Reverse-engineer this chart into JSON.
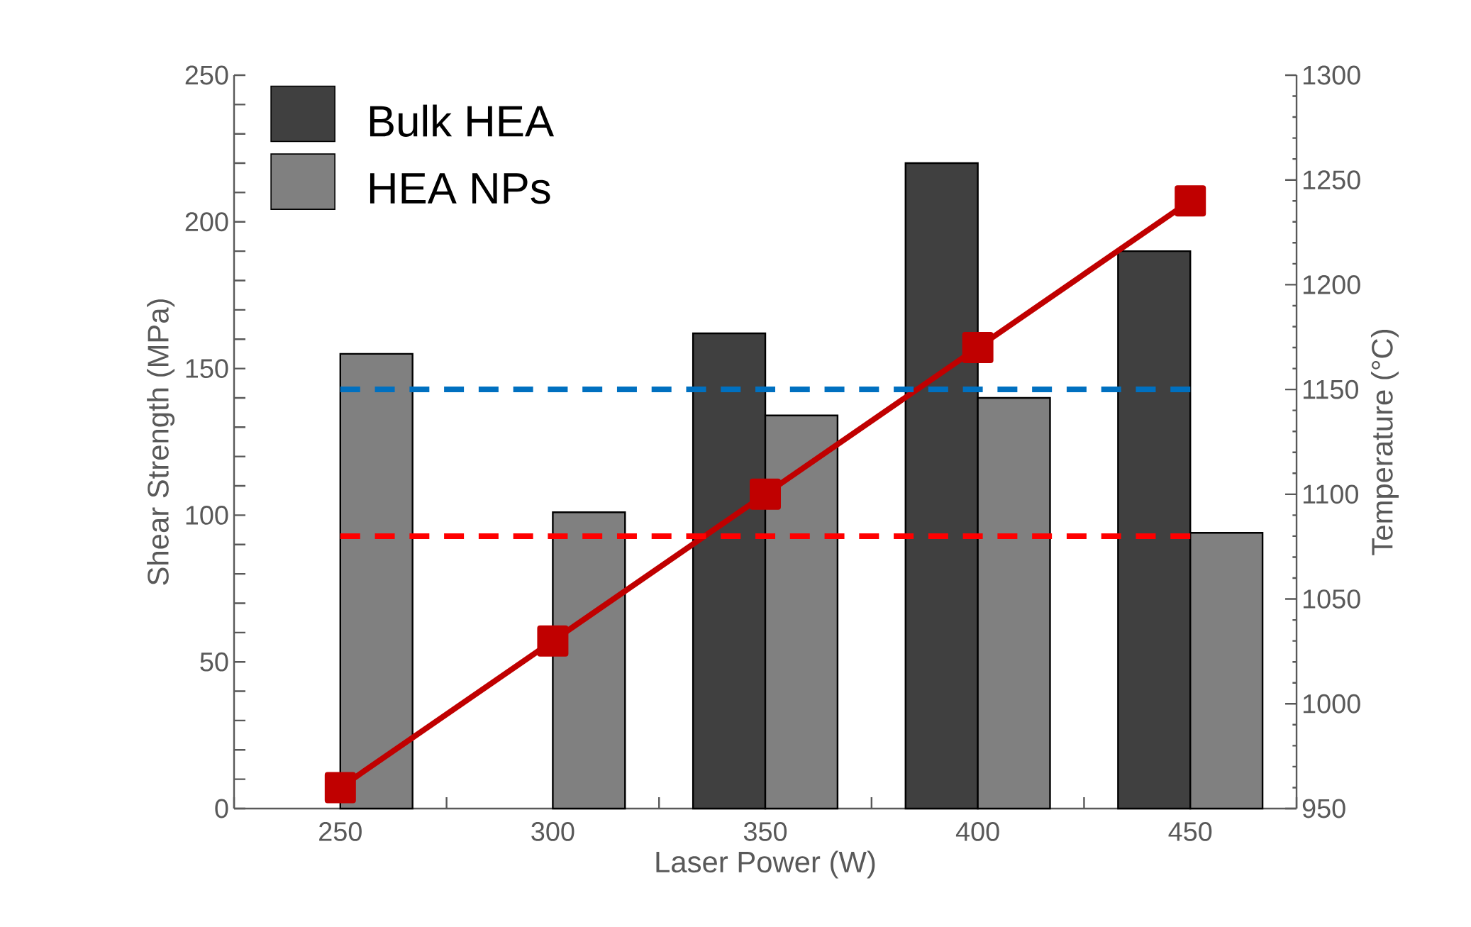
{
  "chart_data": {
    "type": "bar",
    "xlabel": "Laser Power (W)",
    "ylabel": "Shear Strength (MPa)",
    "y2label": "Temperature (°C)",
    "categories": [
      "250",
      "300",
      "350",
      "400",
      "450"
    ],
    "series": [
      {
        "name": "Bulk HEA",
        "color": "#404040",
        "values": [
          null,
          null,
          162,
          220,
          190
        ]
      },
      {
        "name": "HEA NPs",
        "color": "#808080",
        "values": [
          155,
          101,
          134,
          140,
          94
        ]
      },
      {
        "type": "line",
        "axis": "y2",
        "color": "#c00000",
        "marker": "square",
        "line_style": "solid",
        "values": [
          960,
          1030,
          1100,
          1170,
          1240
        ]
      },
      {
        "type": "line",
        "axis": "y2",
        "color": "#0070c0",
        "marker": "none",
        "line_style": "dashed",
        "x": [
          "250",
          "450"
        ],
        "values": [
          1150,
          1150
        ]
      },
      {
        "type": "line",
        "axis": "y2",
        "color": "#ff0000",
        "marker": "none",
        "line_style": "dashed",
        "x": [
          "250",
          "450"
        ],
        "values": [
          1080,
          1080
        ]
      }
    ],
    "ylim": [
      0,
      250
    ],
    "yticks": [
      0,
      50,
      100,
      150,
      200,
      250
    ],
    "y2lim": [
      950,
      1300
    ],
    "y2ticks": [
      950,
      1000,
      1050,
      1100,
      1150,
      1200,
      1250,
      1300
    ],
    "legend": "top left",
    "grid": false
  }
}
